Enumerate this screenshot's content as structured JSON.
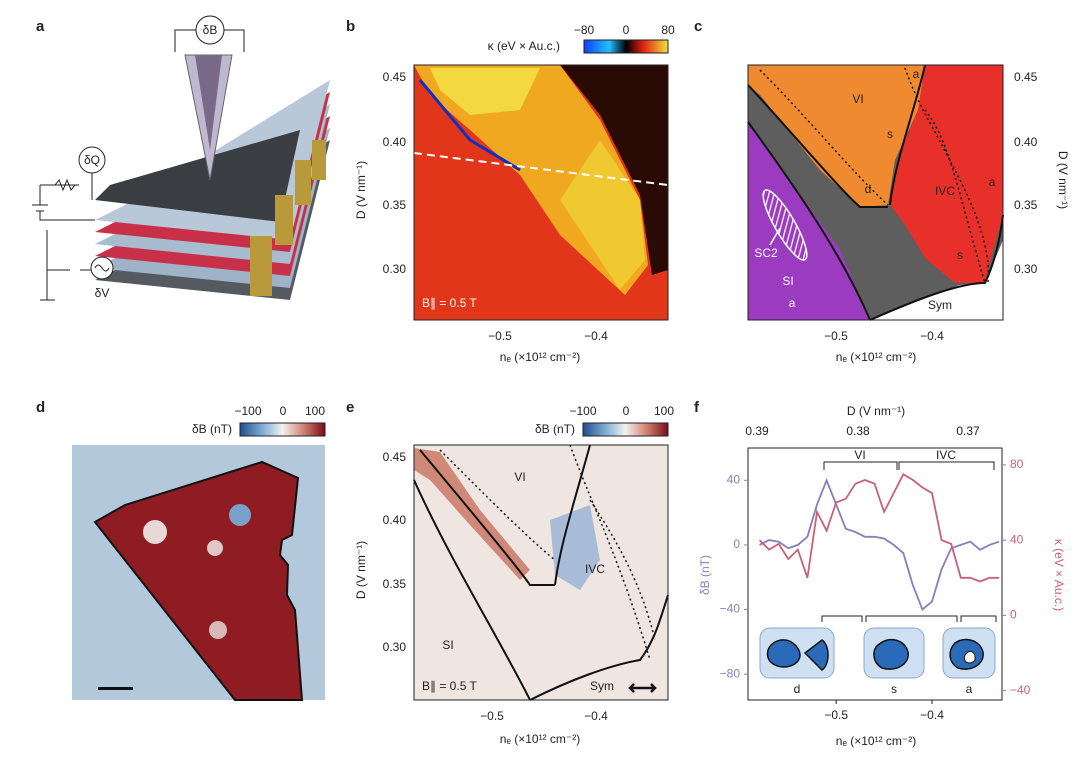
{
  "panel_labels": [
    "a",
    "b",
    "c",
    "d",
    "e",
    "f"
  ],
  "a": {
    "labels": [
      "δB",
      "δQ",
      "δV"
    ]
  },
  "b": {
    "colorbar_label": "κ (eV × Au.c.)",
    "colorbar_ticks": [
      "−80",
      "0",
      "80"
    ],
    "y_label": "D (V nm⁻¹)",
    "x_label": "nₑ (×10¹² cm⁻²)",
    "y_ticks": [
      "0.45",
      "0.40",
      "0.35",
      "0.30"
    ],
    "x_ticks": [
      "−0.5",
      "−0.4"
    ],
    "annotation": "B∥ = 0.5 T"
  },
  "c": {
    "y_label": "D (V nm⁻¹)",
    "x_label": "nₑ (×10¹² cm⁻²)",
    "y_ticks": [
      "0.45",
      "0.40",
      "0.35",
      "0.30"
    ],
    "x_ticks": [
      "−0.5",
      "−0.4"
    ],
    "regions": [
      "VI",
      "IVC",
      "SI",
      "Sym",
      "SC2"
    ],
    "phase_marks": [
      "a",
      "s",
      "d",
      "a",
      "s",
      "a"
    ]
  },
  "d": {
    "colorbar_label": "δB (nT)",
    "colorbar_ticks": [
      "−100",
      "0",
      "100"
    ]
  },
  "e": {
    "colorbar_label": "δB (nT)",
    "colorbar_ticks": [
      "−100",
      "0",
      "100"
    ],
    "y_label": "D (V nm⁻¹)",
    "x_label": "nₑ (×10¹² cm⁻²)",
    "y_ticks": [
      "0.45",
      "0.40",
      "0.35",
      "0.30"
    ],
    "x_ticks": [
      "−0.5",
      "−0.4"
    ],
    "regions": [
      "VI",
      "IVC",
      "SI",
      "Sym"
    ],
    "annotation": "B∥ = 0.5 T"
  },
  "f": {
    "top_label": "D (V nm⁻¹)",
    "top_ticks": [
      "0.39",
      "0.38",
      "0.37"
    ],
    "x_label": "nₑ (×10¹² cm⁻²)",
    "y_label": "δB (nT)",
    "y2_label": "κ (eV × Au.c.)",
    "xlim": [
      -0.592,
      -0.327
    ],
    "ylim": [
      -96,
      60
    ],
    "y2lim": [
      -45,
      89
    ],
    "xticks": [
      {
        "value": -0.5,
        "label": "−0.5"
      },
      {
        "value": -0.4,
        "label": "−0.4"
      }
    ],
    "yticks": [
      40,
      0,
      {
        "value": -40,
        "label": "−40"
      },
      {
        "value": -80,
        "label": "−80"
      }
    ],
    "y2ticks": [
      80,
      40,
      0,
      {
        "value": -40,
        "label": "−40"
      }
    ],
    "brackets": [
      "VI",
      "IVC"
    ],
    "shapes": [
      "d",
      "s",
      "a"
    ],
    "x": [
      -0.58,
      -0.57,
      -0.56,
      -0.55,
      -0.54,
      -0.53,
      -0.52,
      -0.51,
      -0.5,
      -0.49,
      -0.48,
      -0.47,
      -0.46,
      -0.45,
      -0.44,
      -0.43,
      -0.42,
      -0.41,
      -0.4,
      -0.39,
      -0.38,
      -0.37,
      -0.36,
      -0.35,
      -0.34,
      -0.33
    ],
    "series": [
      {
        "color": "#8a7dbb",
        "values": [
          0,
          3,
          2,
          -2,
          0,
          5,
          25,
          40,
          25,
          10,
          8,
          5,
          5,
          4,
          0,
          -5,
          -25,
          -40,
          -35,
          -15,
          -2,
          0,
          2,
          -3,
          0,
          2
        ]
      },
      {
        "color": "#c9607a",
        "axis": "y2",
        "values": [
          40,
          35,
          38,
          30,
          35,
          20,
          55,
          45,
          60,
          62,
          70,
          72,
          70,
          55,
          65,
          75,
          72,
          68,
          65,
          40,
          38,
          20,
          20,
          18,
          20,
          20
        ]
      }
    ]
  }
}
